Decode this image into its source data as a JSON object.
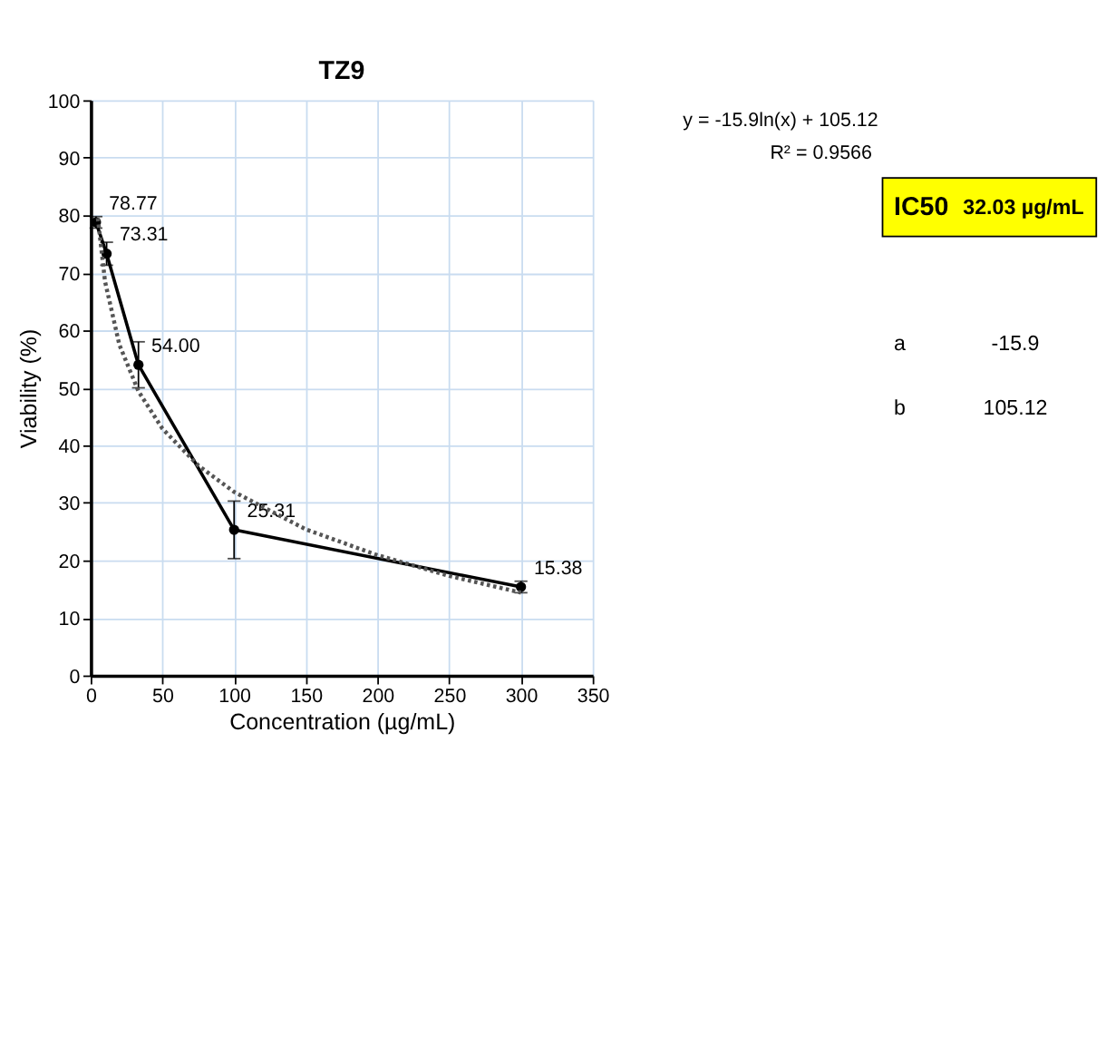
{
  "chart_data": {
    "type": "line",
    "title": "TZ9",
    "xlabel": "Concentration (µg/mL)",
    "ylabel": "Viability (%)",
    "xlim": [
      0,
      350
    ],
    "xticks": [
      0,
      50,
      100,
      150,
      200,
      250,
      300,
      350
    ],
    "ylim": [
      0,
      100
    ],
    "yticks": [
      0,
      10,
      20,
      30,
      40,
      50,
      60,
      70,
      80,
      90,
      100
    ],
    "grid": true,
    "series": [
      {
        "color": "#000000",
        "x": [
          3.7,
          11.1,
          33.3,
          100,
          300
        ],
        "values": [
          78.77,
          73.31,
          54.0,
          25.31,
          15.38
        ],
        "errors": [
          1,
          2,
          4,
          5,
          1
        ],
        "value_labels": [
          "78.77",
          "73.31",
          "54.00",
          "25.31",
          "15.38"
        ],
        "line_style": "solid",
        "marker": "circle"
      },
      {
        "type": "line",
        "color": "#555555",
        "x": [
          5,
          10,
          20,
          33.3,
          50,
          75,
          100,
          150,
          200,
          250,
          300
        ],
        "values": [
          79.5,
          68.5,
          57.5,
          49.4,
          42.9,
          36.5,
          31.9,
          25.4,
          20.9,
          17.3,
          14.4
        ],
        "line_style": "dotted",
        "marker": "none"
      }
    ],
    "annotations": [
      "y = -15.9ln(x) + 105.12",
      "R² = 0.9566",
      "IC50",
      "32.03 µg/mL",
      "a",
      "-15.9",
      "b",
      "105.12"
    ]
  }
}
